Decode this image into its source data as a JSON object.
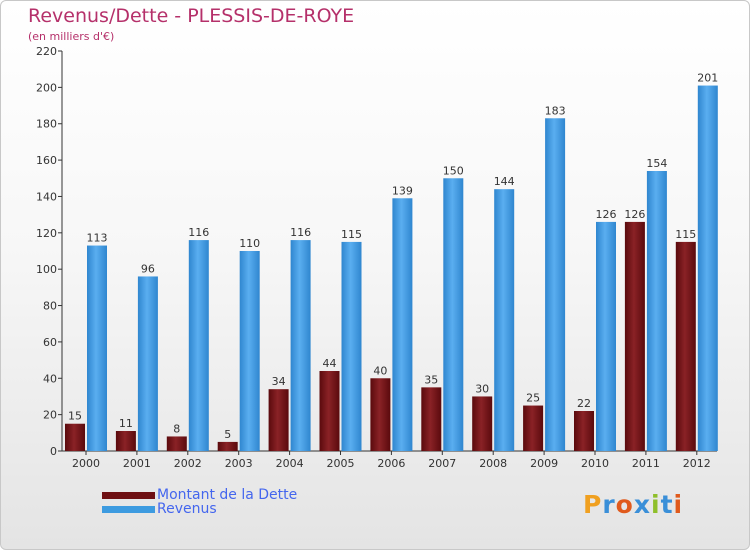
{
  "header": {
    "title": "Revenus/Dette - PLESSIS-DE-ROYE",
    "subtitle": "(en milliers d'€)"
  },
  "colors": {
    "dette": "#6e0f12",
    "revenus": "#3d9be0",
    "title": "#b5306a",
    "legend_text": "#4466ee"
  },
  "chart_data": {
    "type": "bar",
    "categories": [
      "2000",
      "2001",
      "2002",
      "2003",
      "2004",
      "2005",
      "2006",
      "2007",
      "2008",
      "2009",
      "2010",
      "2011",
      "2012"
    ],
    "series": [
      {
        "name": "Montant de la Dette",
        "values": [
          15,
          11,
          8,
          5,
          34,
          44,
          40,
          35,
          30,
          25,
          22,
          126,
          115
        ]
      },
      {
        "name": "Revenus",
        "values": [
          113,
          96,
          116,
          110,
          116,
          115,
          139,
          150,
          144,
          183,
          126,
          154,
          201
        ]
      }
    ],
    "ylim": [
      0,
      220
    ],
    "yticks": [
      0,
      20,
      40,
      60,
      80,
      100,
      120,
      140,
      160,
      180,
      200,
      220
    ],
    "grid": false,
    "legend": "bottom-left"
  },
  "logo": {
    "text": "Proxiti",
    "letters": [
      "P",
      "r",
      "o",
      "x",
      "i",
      "t",
      "i"
    ],
    "colors": [
      "#f0a020",
      "#3a8fd8",
      "#e05a1c",
      "#3a8fd8",
      "#8fbf2a",
      "#3a8fd8",
      "#e05a1c"
    ]
  }
}
